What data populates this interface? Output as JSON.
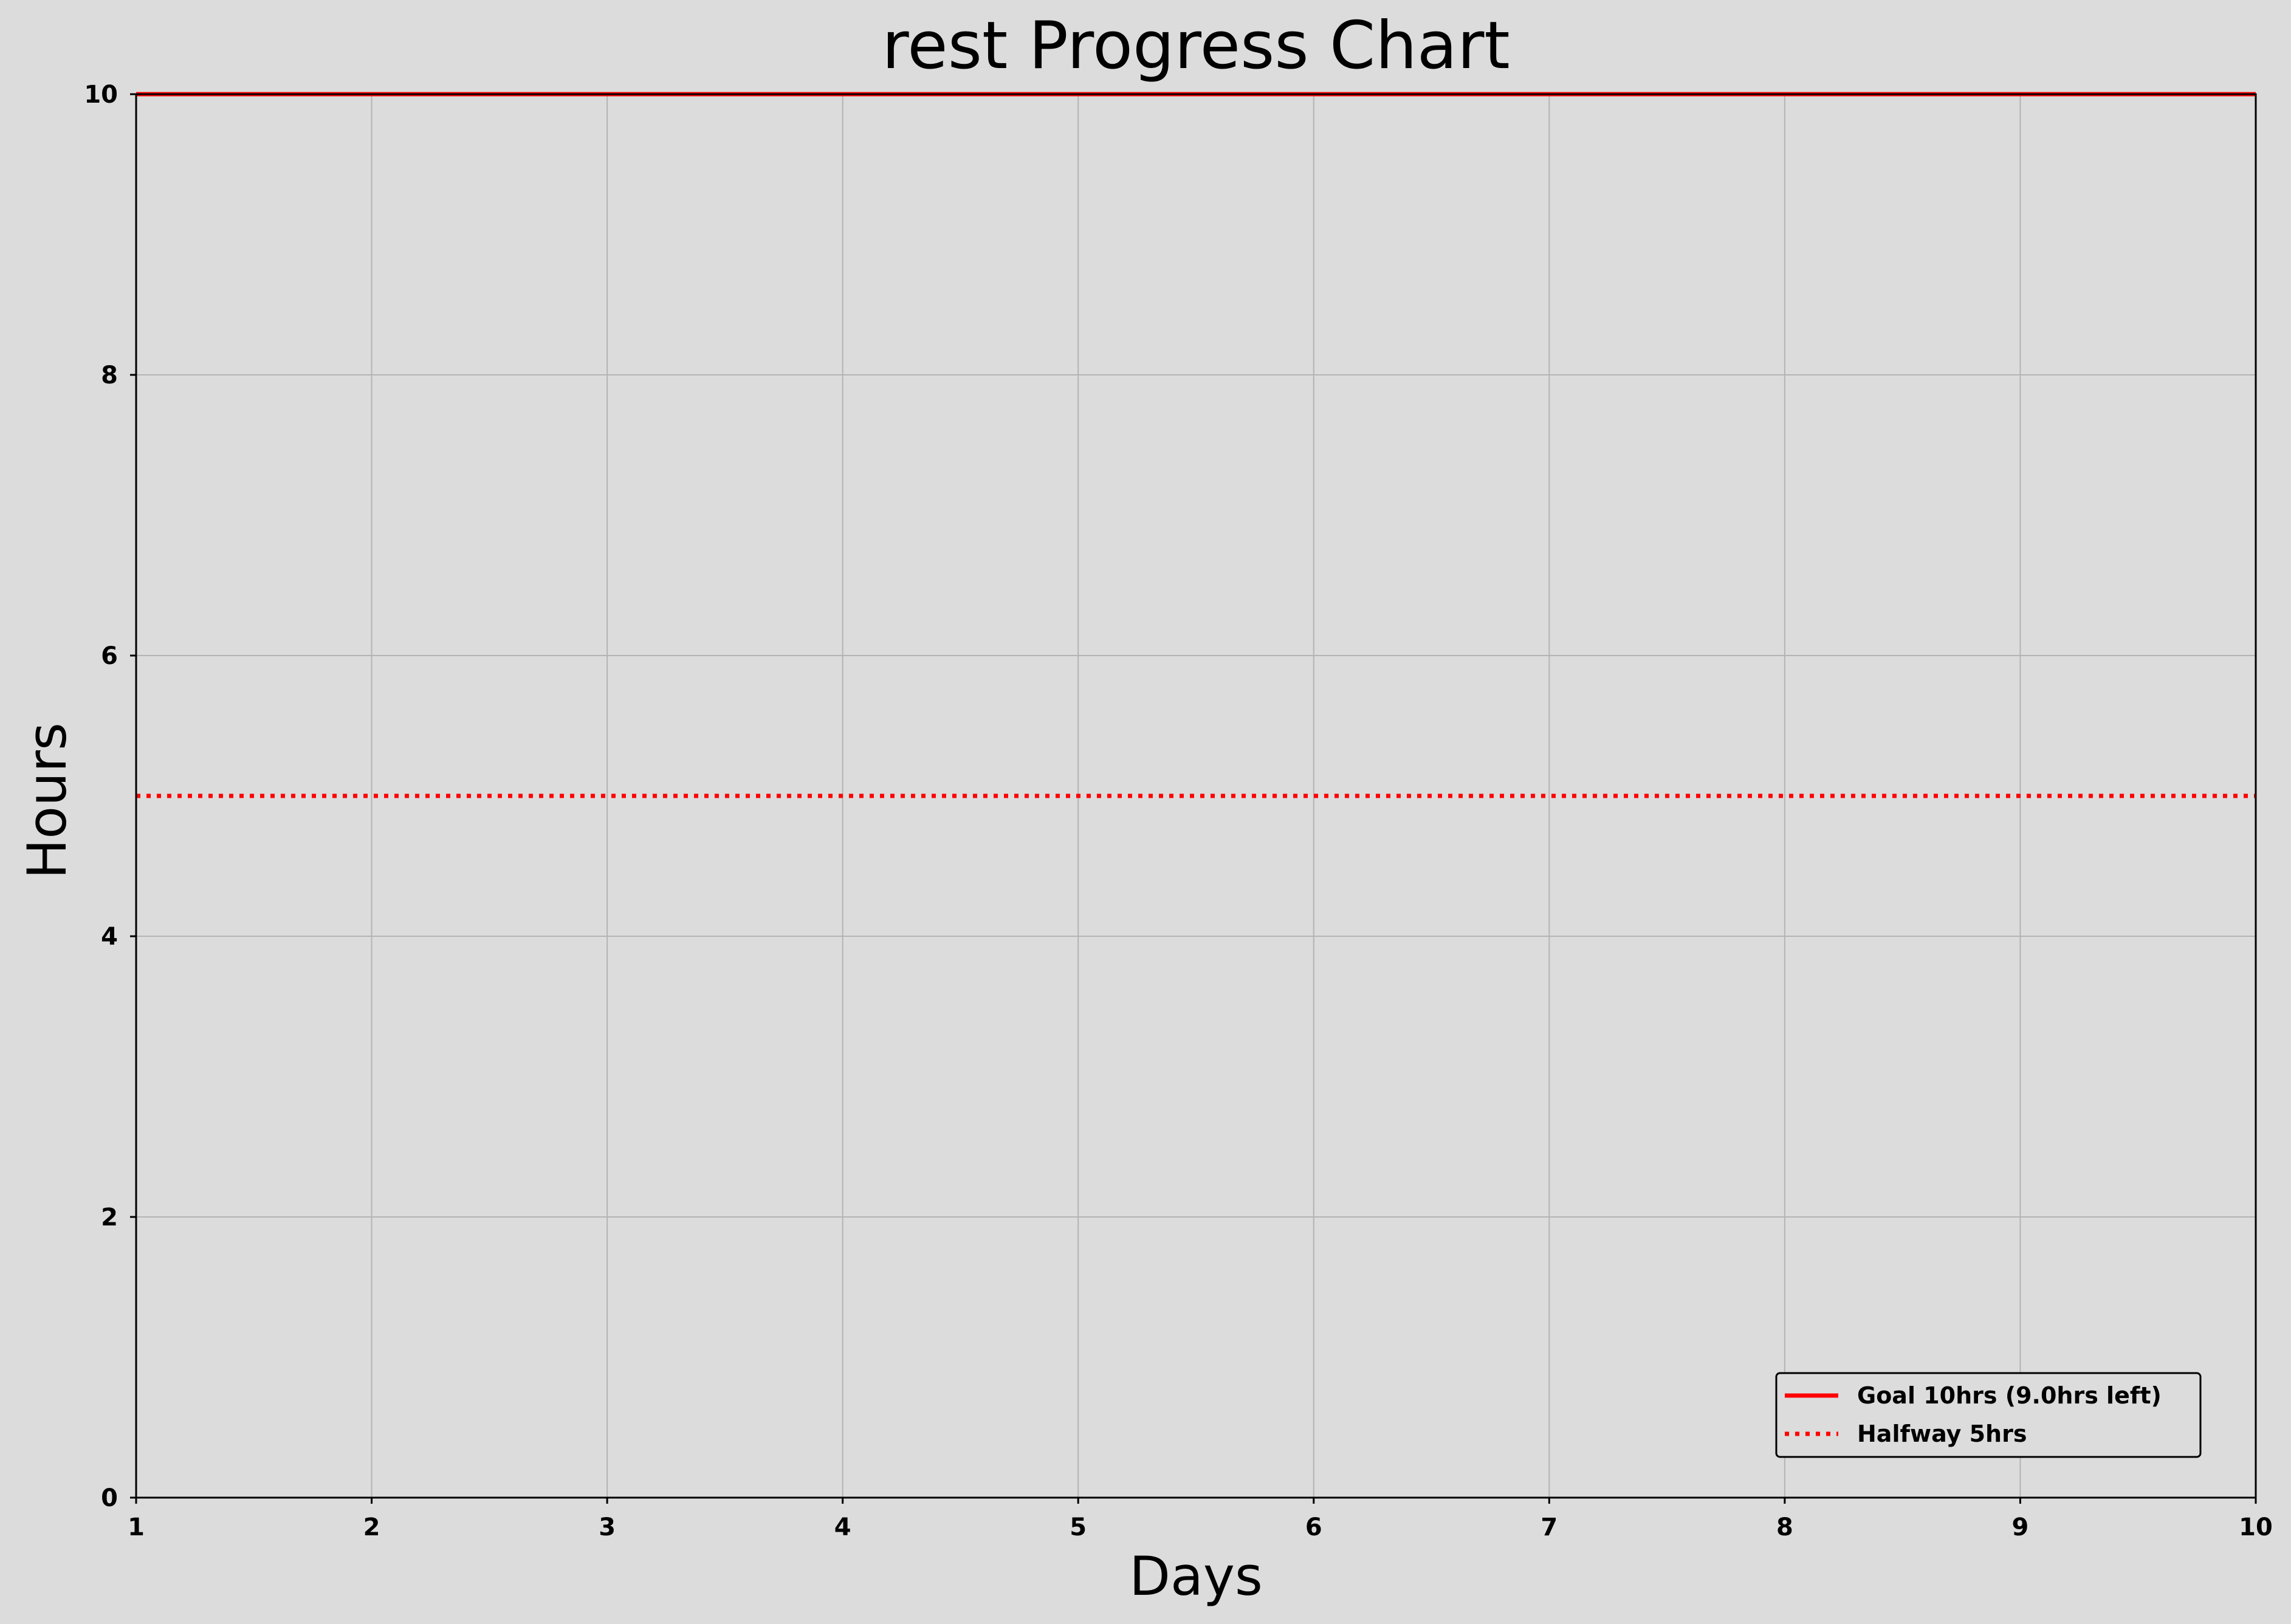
{
  "chart_data": {
    "type": "line",
    "title": "rest Progress Chart",
    "xlabel": "Days",
    "ylabel": "Hours",
    "xlim": [
      1,
      10
    ],
    "ylim": [
      0,
      10
    ],
    "xticks": [
      "1",
      "2",
      "3",
      "4",
      "5",
      "6",
      "7",
      "8",
      "9",
      "10"
    ],
    "yticks": [
      "0",
      "2",
      "4",
      "6",
      "8",
      "10"
    ],
    "grid": true,
    "legend_position": "lower-right",
    "series": [
      {
        "name": "Goal 10hrs (9.0hrs left)",
        "y": 10,
        "style": "solid",
        "color": "#ff0000"
      },
      {
        "name": "Halfway 5hrs",
        "y": 5,
        "style": "dotted",
        "color": "#ff0000"
      }
    ],
    "colors": {
      "background": "#dcdcdc",
      "grid": "#b4b4b4",
      "axis": "#000000"
    }
  }
}
